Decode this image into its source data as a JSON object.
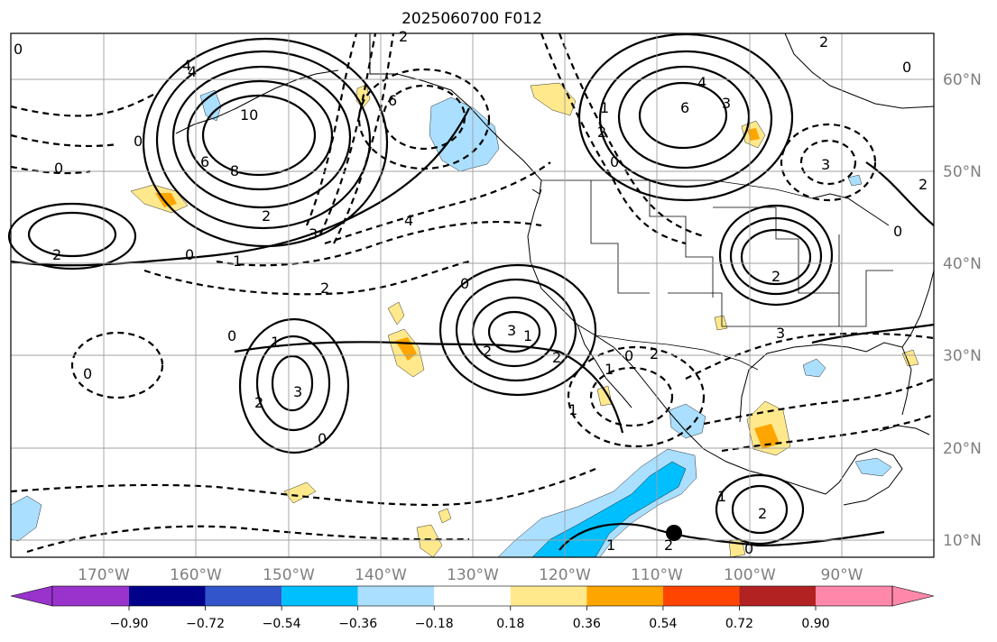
{
  "title": "2025060700 F012",
  "lat_labels": [
    "60°N",
    "50°N",
    "40°N",
    "30°N",
    "20°N",
    "10°N"
  ],
  "lon_labels": [
    "170°W",
    "160°W",
    "150°W",
    "140°W",
    "130°W",
    "120°W",
    "110°W",
    "100°W",
    "90°W"
  ],
  "colorbar": {
    "ticks": [
      "−0.90",
      "−0.72",
      "−0.54",
      "−0.36",
      "−0.18",
      "0.18",
      "0.36",
      "0.54",
      "0.72",
      "0.90"
    ],
    "colors": {
      "under": "#9933cc",
      "bins": [
        "#00008b",
        "#3355cc",
        "#00bfff",
        "#aadfff",
        "#ffffff",
        "#ffe98c",
        "#ffa500",
        "#ff4500",
        "#b22222"
      ],
      "over": "#ff88aa"
    }
  },
  "contour_labels": [
    "2",
    "0",
    "4",
    "10",
    "8",
    "6",
    "0",
    "0",
    "2",
    "0",
    "1",
    "2",
    "3",
    "4",
    "6",
    "4",
    "2",
    "0",
    "1",
    "2",
    "3",
    "0",
    "2",
    "3",
    "1",
    "2",
    "0",
    "2",
    "1",
    "0",
    "6",
    "4",
    "3",
    "0",
    "2",
    "3",
    "2",
    "0",
    "2",
    "1",
    "0",
    "1",
    "2",
    "1",
    "2",
    "3",
    "0",
    "2",
    "1",
    "0"
  ],
  "colors": {
    "land_border": "#000000",
    "grid": "#a0a0a0",
    "label_gray": "#7f7f7f"
  }
}
